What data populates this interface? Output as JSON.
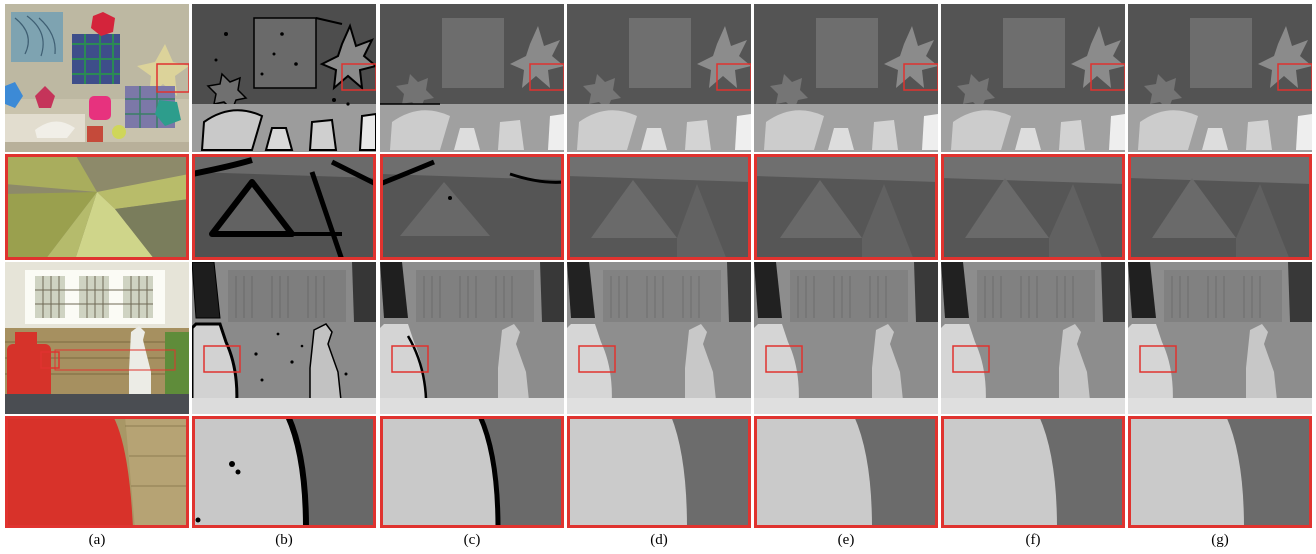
{
  "columns": [
    {
      "id": "a",
      "label": "(a)",
      "kind": "color"
    },
    {
      "id": "b",
      "label": "(b)",
      "kind": "holes"
    },
    {
      "id": "c",
      "label": "(c)",
      "kind": "edges"
    },
    {
      "id": "d",
      "label": "(d)",
      "kind": "smooth"
    },
    {
      "id": "e",
      "label": "(e)",
      "kind": "smooth"
    },
    {
      "id": "f",
      "label": "(f)",
      "kind": "smooth"
    },
    {
      "id": "g",
      "label": "(g)",
      "kind": "smooth"
    }
  ],
  "colors": {
    "roi_box": "#e0332f",
    "hole": "#000000",
    "depth_background": "#4a4a4a",
    "depth_mid": "#7a7a7a",
    "depth_near": "#c8c8c8"
  }
}
